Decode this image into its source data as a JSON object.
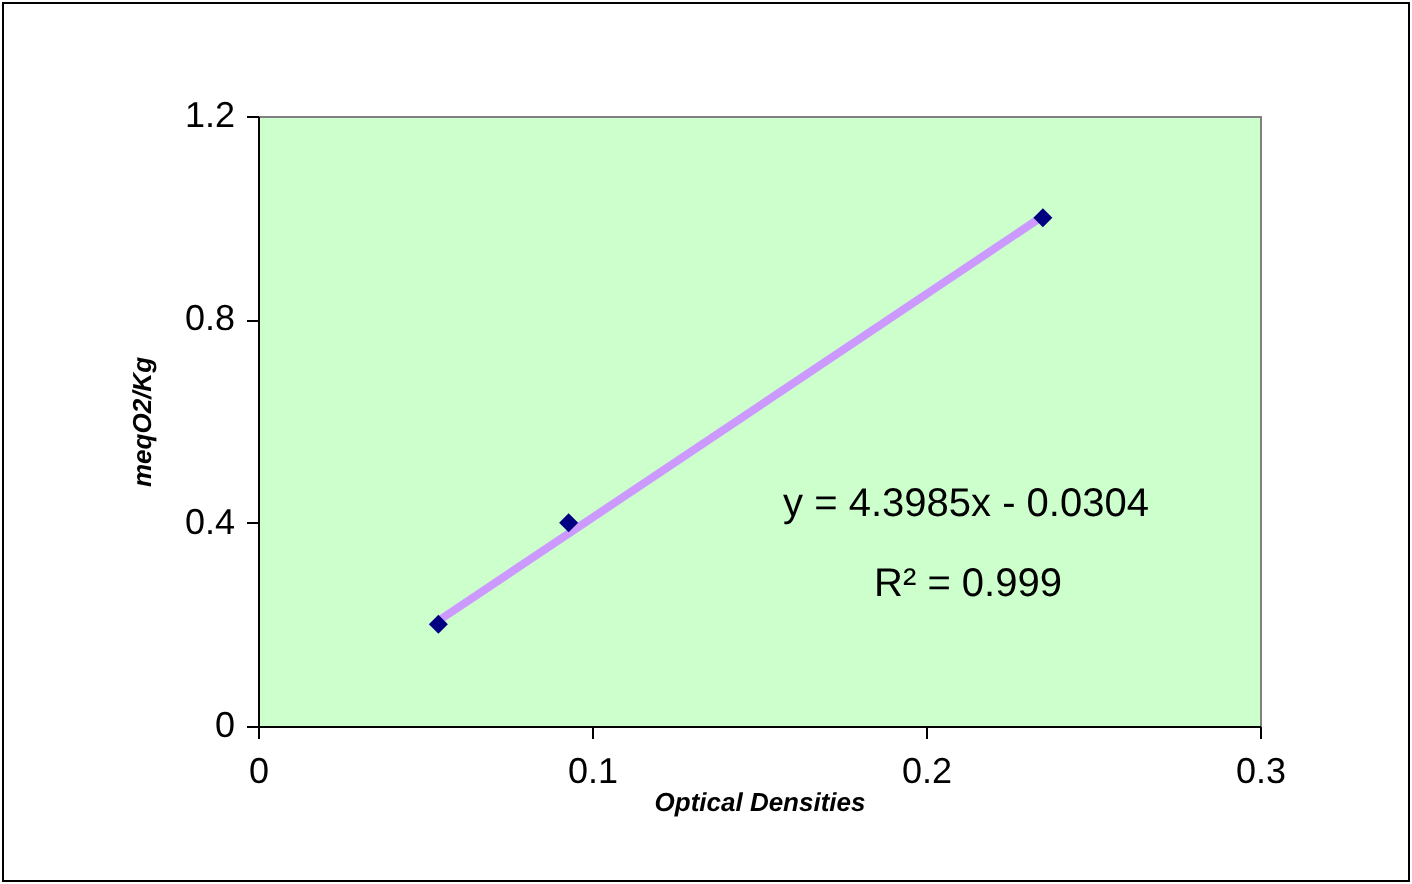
{
  "chart_data": {
    "type": "scatter",
    "xlabel": "Optical Densities",
    "ylabel": "meqO2/Kg",
    "xlim": [
      0,
      0.3
    ],
    "xticks": [
      0,
      0.1,
      0.2,
      0.3
    ],
    "ylim": [
      0,
      1.2
    ],
    "yticks": [
      0,
      0.4,
      0.8,
      1.2
    ],
    "grid": false,
    "series": [
      {
        "type": "scatter",
        "marker": "diamond",
        "color": "#000080",
        "x": [
          0.054,
          0.093,
          0.235
        ],
        "values": [
          0.2,
          0.4,
          1.0
        ]
      },
      {
        "type": "line",
        "marker": "none",
        "color": "#cc99ff",
        "x": [
          0.054,
          0.235
        ],
        "values": [
          0.207,
          1.003
        ]
      }
    ],
    "annotations": [
      "y = 4.3985x - 0.0304",
      "R² = 0.999"
    ]
  }
}
